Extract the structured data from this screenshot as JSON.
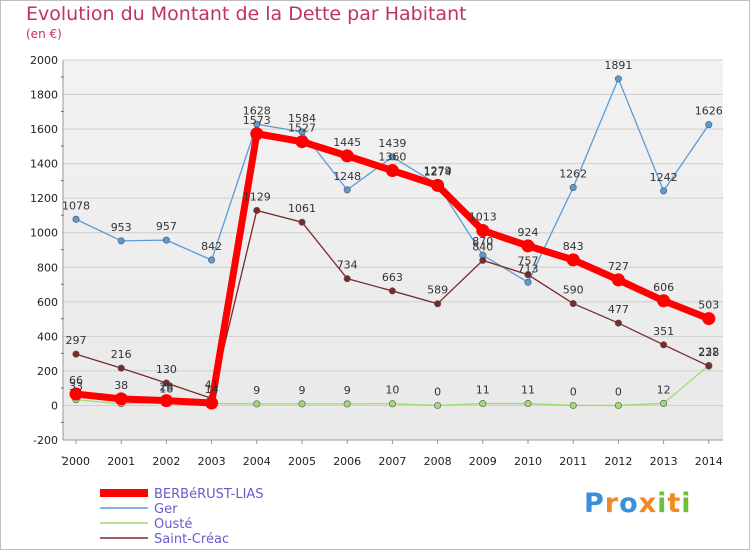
{
  "header": {
    "title": "Evolution du Montant de la Dette par Habitant",
    "unit": "(en €)"
  },
  "logo": {
    "letters": [
      "P",
      "r",
      "o",
      "x",
      "i",
      "t",
      "i"
    ],
    "colors": [
      "#3b8fd9",
      "#f08a24",
      "#3b8fd9",
      "#f08a24",
      "#6cbf3a",
      "#f08a24",
      "#6cbf3a"
    ]
  },
  "chart_data": {
    "type": "line",
    "title": "Evolution du Montant de la Dette par Habitant",
    "ylabel": "(en €)",
    "xlabel": "",
    "x": [
      "2000",
      "2001",
      "2002",
      "2003",
      "2004",
      "2005",
      "2006",
      "2007",
      "2008",
      "2009",
      "2010",
      "2011",
      "2012",
      "2013",
      "2014"
    ],
    "ylim": [
      -200,
      2000
    ],
    "yticks": [
      "-200",
      "0",
      "200",
      "400",
      "600",
      "800",
      "1000",
      "1200",
      "1400",
      "1600",
      "1800",
      "2000"
    ],
    "grid": "horizontal",
    "legend": "bottom-left",
    "series": [
      {
        "name": "Ger",
        "color": "#5b9bd5",
        "values": [
          1078,
          953,
          957,
          842,
          1628,
          1584,
          1248,
          1439,
          1279,
          870,
          713,
          1262,
          1891,
          1242,
          1626
        ],
        "labels": [
          "1078",
          "953",
          "957",
          "842",
          "1628",
          "1584",
          "1248",
          "1439",
          "1279",
          "870",
          "713",
          "1262",
          "1891",
          "1242",
          "1626"
        ]
      },
      {
        "name": "Ousté",
        "color": "#9fdc6e",
        "values": [
          33,
          10,
          18,
          11,
          9,
          9,
          9,
          10,
          0,
          11,
          11,
          0,
          0,
          12,
          232
        ],
        "labels": [
          "33",
          "",
          "18",
          "",
          "9",
          "9",
          "9",
          "10",
          "0",
          "11",
          "11",
          "0",
          "0",
          "12",
          "232"
        ]
      },
      {
        "name": "Saint-Créac",
        "color": "#7a2a2a",
        "values": [
          297,
          216,
          130,
          41,
          1129,
          1061,
          734,
          663,
          589,
          840,
          757,
          590,
          477,
          351,
          228
        ],
        "labels": [
          "297",
          "216",
          "130",
          "41",
          "1129",
          "1061",
          "734",
          "663",
          "589",
          "840",
          "757",
          "590",
          "477",
          "351",
          "228"
        ]
      },
      {
        "name": "BERBéRUST-LIAS",
        "color": "#ff0000",
        "values": [
          66,
          38,
          28,
          14,
          1573,
          1527,
          1445,
          1360,
          1274,
          1013,
          924,
          843,
          727,
          606,
          503
        ],
        "labels": [
          "66",
          "38",
          "28",
          "14",
          "1573",
          "1527",
          "1445",
          "1360",
          "1274",
          "1013",
          "924",
          "843",
          "727",
          "606",
          "503"
        ]
      }
    ],
    "legend_entries": [
      "BERBéRUST-LIAS",
      "Ger",
      "Ousté",
      "Saint-Créac"
    ]
  }
}
